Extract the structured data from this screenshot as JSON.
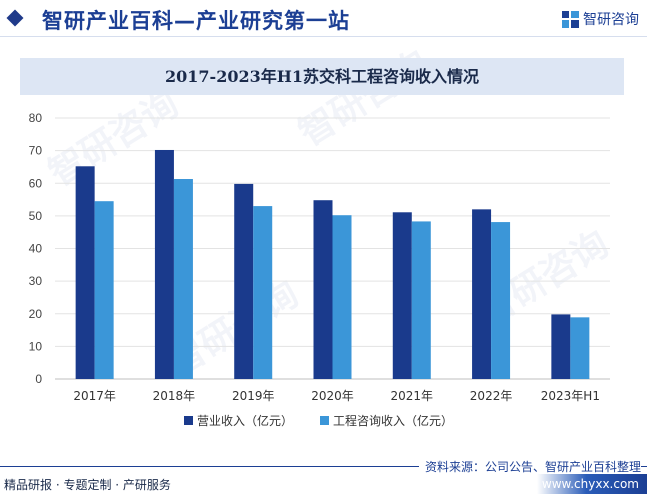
{
  "header": {
    "site_title": "智研产业百科—产业研究第一站",
    "brand_name": "智研咨询"
  },
  "chart_data": {
    "type": "bar",
    "title": "2017-2023年H1苏交科工程咨询收入情况",
    "categories": [
      "2017年",
      "2018年",
      "2019年",
      "2020年",
      "2021年",
      "2022年",
      "2023年H1"
    ],
    "series": [
      {
        "name": "营业收入（亿元）",
        "color": "#1a3a8c",
        "values": [
          65.2,
          70.2,
          59.8,
          54.8,
          51.1,
          52.0,
          19.8
        ]
      },
      {
        "name": "工程咨询收入（亿元）",
        "color": "#3b96d8",
        "values": [
          54.5,
          61.3,
          53.0,
          50.2,
          48.3,
          48.1,
          18.9
        ]
      }
    ],
    "ylim": [
      0,
      80
    ],
    "yticks": [
      0,
      10,
      20,
      30,
      40,
      50,
      60,
      70,
      80
    ],
    "grid": true,
    "legend_position": "bottom-center",
    "xlabel": "",
    "ylabel": ""
  },
  "footer": {
    "source": "资料来源：公司公告、智研产业百科整理",
    "slogan": "精品研报 · 专题定制 · 产研服务",
    "url": "www.chyxx.com"
  },
  "colors": {
    "brand": "#1c3f94",
    "grid": "#e3e3e3"
  }
}
